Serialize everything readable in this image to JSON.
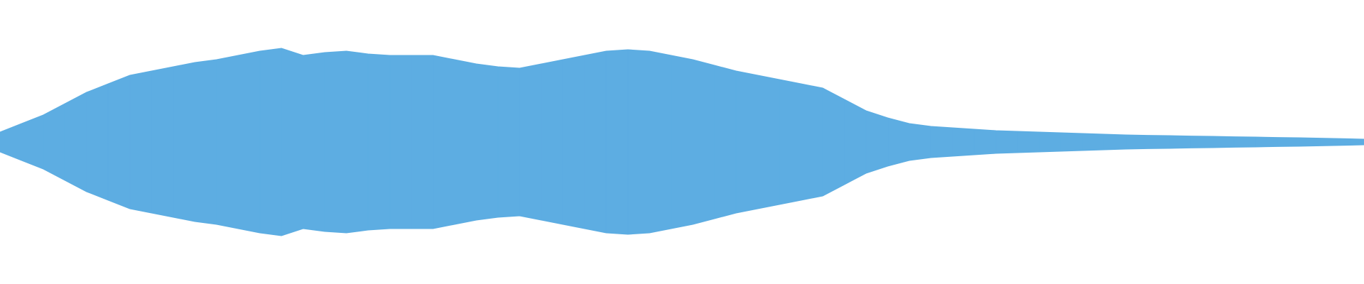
{
  "chart_data": {
    "type": "waveform",
    "color": "#5dade2",
    "ylim": [
      -1,
      1
    ],
    "values": [
      0.07,
      0.13,
      0.19,
      0.27,
      0.35,
      0.41,
      0.47,
      0.5,
      0.53,
      0.56,
      0.58,
      0.61,
      0.64,
      0.66,
      0.61,
      0.63,
      0.64,
      0.62,
      0.61,
      0.61,
      0.61,
      0.58,
      0.55,
      0.53,
      0.52,
      0.55,
      0.58,
      0.61,
      0.64,
      0.65,
      0.64,
      0.61,
      0.58,
      0.54,
      0.5,
      0.47,
      0.44,
      0.41,
      0.38,
      0.3,
      0.22,
      0.17,
      0.13,
      0.11,
      0.1,
      0.09,
      0.08,
      0.075,
      0.07,
      0.065,
      0.06,
      0.055,
      0.05,
      0.047,
      0.045,
      0.042,
      0.04,
      0.037,
      0.035,
      0.032,
      0.03,
      0.027,
      0.024,
      0.02
    ]
  }
}
